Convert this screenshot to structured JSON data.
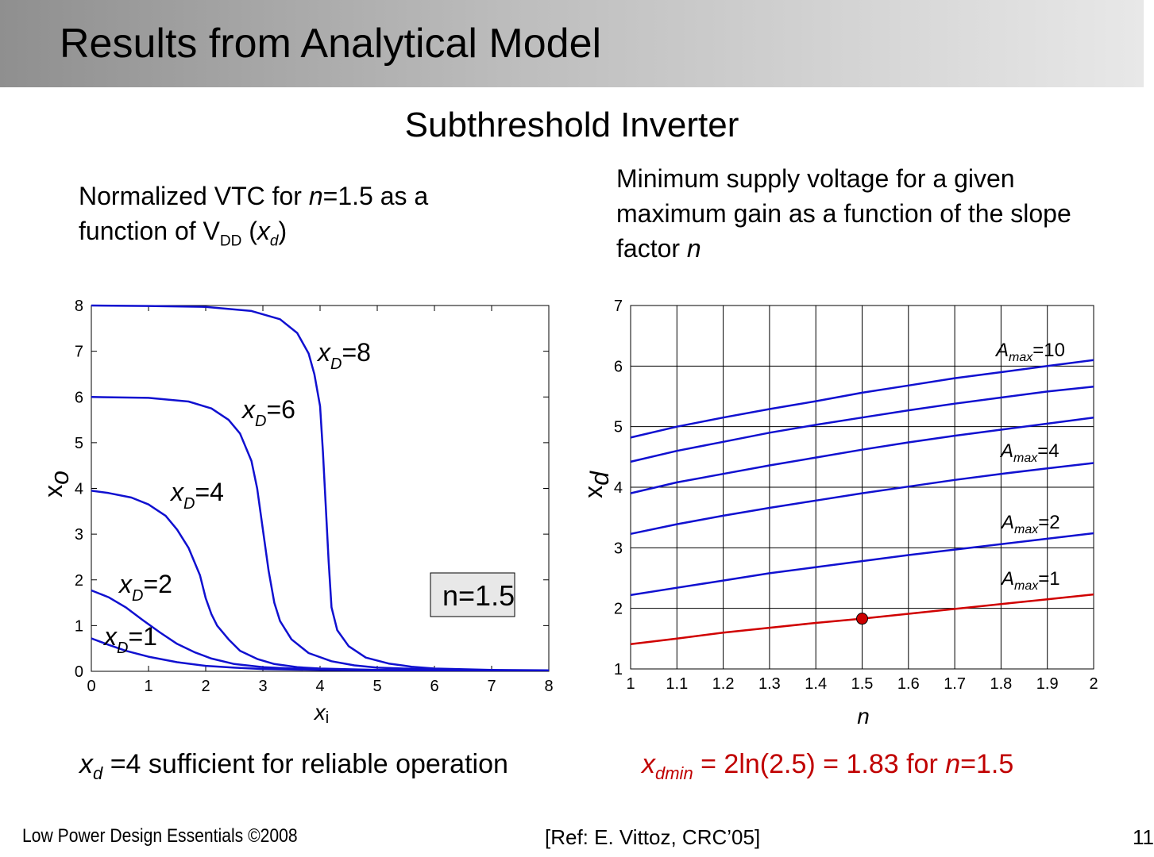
{
  "slide": {
    "title": "Results from Analytical Model",
    "subtitle": "Subthreshold Inverter",
    "left_desc": {
      "t1": "Normalized VTC for ",
      "t2": "n",
      "t3": "=1.5 as a",
      "t4": "function of V",
      "t5": "DD",
      "t6": " (",
      "t7": "x",
      "t8": "d",
      "t9": ")"
    },
    "right_desc": {
      "t1": "Minimum supply voltage for a given maximum gain as a function of the slope factor ",
      "t2": "n"
    },
    "left_note": {
      "t1": "x",
      "t2": "d",
      "t3": " =4 sufficient for reliable operation"
    },
    "right_note": {
      "t1": "x",
      "t2": "dmin",
      "t3": " = 2ln(2.5) = 1.83 for ",
      "t4": "n",
      "t5": "=1.5"
    },
    "footer": {
      "left": "Low Power Design Essentials ©2008",
      "ref": "[Ref: E. Vittoz, CRC’05]",
      "page": "11"
    }
  },
  "chart_data": [
    {
      "type": "line",
      "xlabel": "x",
      "xlabel_sub": "i",
      "ylabel": "x",
      "ylabel_sub": "o",
      "xlim": [
        0,
        8
      ],
      "ylim": [
        0,
        8
      ],
      "xticks": [
        0,
        1,
        2,
        3,
        4,
        5,
        6,
        7,
        8
      ],
      "yticks": [
        0,
        1,
        2,
        3,
        4,
        5,
        6,
        7,
        8
      ],
      "grid": false,
      "line_color": "#1010d0",
      "annotation": "n=1.5",
      "series": [
        {
          "name": "xD=8",
          "label": {
            "p1": "x",
            "p2": "D",
            "p3": "=8"
          },
          "x": [
            0,
            1,
            2,
            2.8,
            3.3,
            3.6,
            3.8,
            3.9,
            4.0,
            4.05,
            4.1,
            4.15,
            4.2,
            4.3,
            4.5,
            4.8,
            5.2,
            5.6,
            6,
            7,
            8
          ],
          "y": [
            8,
            7.99,
            7.97,
            7.88,
            7.7,
            7.4,
            6.95,
            6.5,
            5.8,
            4.8,
            3.6,
            2.4,
            1.4,
            0.9,
            0.55,
            0.3,
            0.17,
            0.1,
            0.06,
            0.03,
            0.02
          ]
        },
        {
          "name": "xD=6",
          "label": {
            "p1": "x",
            "p2": "D",
            "p3": "=6"
          },
          "x": [
            0,
            1,
            1.7,
            2.1,
            2.4,
            2.6,
            2.8,
            2.9,
            3.0,
            3.1,
            3.2,
            3.3,
            3.5,
            3.8,
            4.2,
            4.6,
            5,
            6,
            7,
            8
          ],
          "y": [
            6,
            5.98,
            5.9,
            5.75,
            5.5,
            5.2,
            4.6,
            4.0,
            3.1,
            2.2,
            1.5,
            1.1,
            0.7,
            0.4,
            0.22,
            0.13,
            0.08,
            0.04,
            0.02,
            0.02
          ]
        },
        {
          "name": "xD=4",
          "label": {
            "p1": "x",
            "p2": "D",
            "p3": "=4"
          },
          "x": [
            0,
            0.3,
            0.7,
            1.0,
            1.3,
            1.5,
            1.7,
            1.9,
            2.0,
            2.1,
            2.2,
            2.4,
            2.6,
            2.9,
            3.2,
            3.6,
            4,
            5,
            6,
            8
          ],
          "y": [
            3.95,
            3.9,
            3.8,
            3.65,
            3.4,
            3.1,
            2.7,
            2.1,
            1.6,
            1.25,
            1.0,
            0.7,
            0.45,
            0.27,
            0.16,
            0.09,
            0.06,
            0.03,
            0.02,
            0.02
          ]
        },
        {
          "name": "xD=2",
          "label": {
            "p1": "x",
            "p2": "D",
            "p3": "=2"
          },
          "x": [
            0,
            0.3,
            0.6,
            0.9,
            1.2,
            1.5,
            1.8,
            2.1,
            2.5,
            3,
            3.5,
            4,
            5,
            6,
            8
          ],
          "y": [
            1.77,
            1.62,
            1.4,
            1.12,
            0.85,
            0.6,
            0.42,
            0.28,
            0.16,
            0.09,
            0.06,
            0.04,
            0.03,
            0.02,
            0.02
          ]
        },
        {
          "name": "xD=1",
          "label": {
            "p1": "x",
            "p2": "D",
            "p3": "=1"
          },
          "x": [
            0,
            0.3,
            0.6,
            1.0,
            1.5,
            2.0,
            2.5,
            3,
            4,
            5,
            6,
            8
          ],
          "y": [
            0.72,
            0.58,
            0.45,
            0.32,
            0.2,
            0.12,
            0.08,
            0.05,
            0.03,
            0.02,
            0.02,
            0.02
          ]
        }
      ]
    },
    {
      "type": "line",
      "xlabel": "n",
      "ylabel": "x",
      "ylabel_sub": "d",
      "xlim": [
        1,
        2
      ],
      "ylim": [
        1,
        7
      ],
      "xticks": [
        1,
        1.1,
        1.2,
        1.3,
        1.4,
        1.5,
        1.6,
        1.7,
        1.8,
        1.9,
        2
      ],
      "yticks": [
        1,
        2,
        3,
        4,
        5,
        6,
        7
      ],
      "grid": true,
      "series": [
        {
          "name": "Amax=10",
          "label": {
            "p1": "A",
            "p2": "max",
            "p3": "=10"
          },
          "color": "#1010d0",
          "x": [
            1,
            1.1,
            1.2,
            1.3,
            1.4,
            1.5,
            1.6,
            1.7,
            1.8,
            1.9,
            2
          ],
          "y": [
            4.82,
            5.0,
            5.15,
            5.29,
            5.42,
            5.56,
            5.68,
            5.8,
            5.9,
            6.0,
            6.1
          ]
        },
        {
          "name": "",
          "color": "#1010d0",
          "x": [
            1,
            1.1,
            1.2,
            1.3,
            1.4,
            1.5,
            1.6,
            1.7,
            1.8,
            1.9,
            2
          ],
          "y": [
            4.42,
            4.6,
            4.75,
            4.9,
            5.03,
            5.15,
            5.27,
            5.38,
            5.48,
            5.58,
            5.66
          ]
        },
        {
          "name": "Amax=4",
          "label": {
            "p1": "A",
            "p2": "max",
            "p3": "=4"
          },
          "color": "#1010d0",
          "x": [
            1,
            1.1,
            1.2,
            1.3,
            1.4,
            1.5,
            1.6,
            1.7,
            1.8,
            1.9,
            2
          ],
          "y": [
            3.9,
            4.08,
            4.22,
            4.36,
            4.49,
            4.62,
            4.74,
            4.85,
            4.95,
            5.05,
            5.15
          ]
        },
        {
          "name": "Amax=2",
          "label": {
            "p1": "A",
            "p2": "max",
            "p3": "=2"
          },
          "color": "#1010d0",
          "x": [
            1,
            1.1,
            1.2,
            1.3,
            1.4,
            1.5,
            1.6,
            1.7,
            1.8,
            1.9,
            2
          ],
          "y": [
            3.23,
            3.39,
            3.53,
            3.66,
            3.78,
            3.9,
            4.01,
            4.12,
            4.22,
            4.31,
            4.4
          ]
        },
        {
          "name": "Amax=1",
          "label": {
            "p1": "A",
            "p2": "max",
            "p3": "=1"
          },
          "color": "#1010d0",
          "x": [
            1,
            1.1,
            1.2,
            1.3,
            1.4,
            1.5,
            1.6,
            1.7,
            1.8,
            1.9,
            2
          ],
          "y": [
            2.22,
            2.34,
            2.46,
            2.58,
            2.68,
            2.78,
            2.88,
            2.97,
            3.06,
            3.15,
            3.24
          ]
        },
        {
          "name": "",
          "color": "#d00000",
          "x": [
            1,
            1.1,
            1.2,
            1.3,
            1.4,
            1.5,
            1.6,
            1.7,
            1.8,
            1.9,
            2
          ],
          "y": [
            1.41,
            1.5,
            1.6,
            1.68,
            1.76,
            1.83,
            1.91,
            1.99,
            2.07,
            2.15,
            2.23
          ]
        }
      ],
      "marker": {
        "x": 1.5,
        "y": 1.83,
        "color": "#cc0000"
      }
    }
  ]
}
